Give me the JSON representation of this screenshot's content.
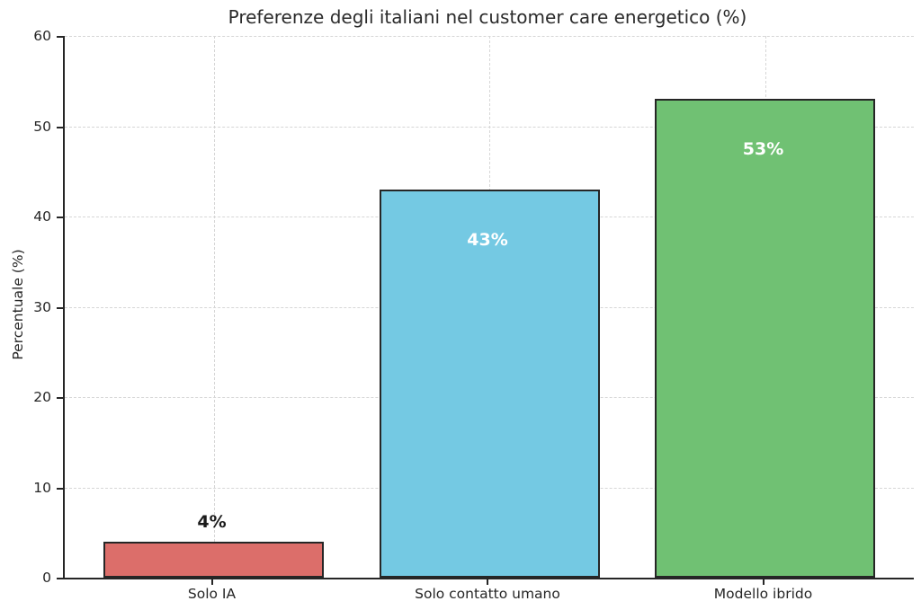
{
  "chart_data": {
    "type": "bar",
    "title": "Preferenze degli italiani nel customer care energetico (%)",
    "ylabel": "Percentuale (%)",
    "xlabel": "",
    "categories": [
      "Solo IA",
      "Solo contatto umano",
      "Modello ibrido"
    ],
    "values": [
      4,
      43,
      53
    ],
    "bar_labels": [
      "4%",
      "43%",
      "53%"
    ],
    "bar_label_placements": [
      "above",
      "inside",
      "inside"
    ],
    "bar_label_colors": [
      "#1a1a1a",
      "#ffffff",
      "#ffffff"
    ],
    "bar_colors": [
      "#dc6e6a",
      "#74c9e3",
      "#70c173"
    ],
    "bar_edge_color": "#262626",
    "ylim": [
      0,
      60
    ],
    "yticks": [
      0,
      10,
      20,
      30,
      40,
      50,
      60
    ],
    "grid": "dashed",
    "grid_color": "#d6d6d6",
    "axis_color": "#262626",
    "background_color": "#ffffff",
    "legend": "none"
  }
}
